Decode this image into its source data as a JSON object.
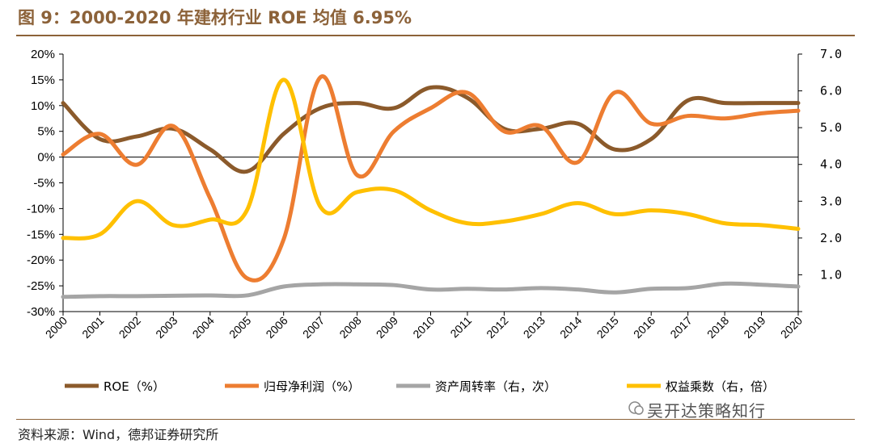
{
  "title": "图 9：2000-2020 年建材行业 ROE 均值 6.95%",
  "source": "资料来源：Wind，德邦证券研究所",
  "watermark": "吴开达策略知行",
  "chart_data": {
    "type": "line",
    "x": [
      "2000",
      "2001",
      "2002",
      "2003",
      "2004",
      "2005",
      "2006",
      "2007",
      "2008",
      "2009",
      "2010",
      "2011",
      "2012",
      "2013",
      "2014",
      "2015",
      "2016",
      "2017",
      "2018",
      "2019",
      "2020"
    ],
    "y_left": {
      "min": -30,
      "max": 20,
      "step": 5,
      "format": "percent",
      "ticks": [
        "20%",
        "15%",
        "10%",
        "5%",
        "0%",
        "-5%",
        "-10%",
        "-15%",
        "-20%",
        "-25%",
        "-30%"
      ]
    },
    "y_right": {
      "min": 0,
      "max": 7,
      "step": 1,
      "ticks": [
        "7.0",
        "6.0",
        "5.0",
        "4.0",
        "3.0",
        "2.0",
        "1.0"
      ]
    },
    "series": [
      {
        "name": "ROE（%）",
        "axis": "left",
        "color": "#8b5a2b",
        "values": [
          10.5,
          3.5,
          4.0,
          5.5,
          1.5,
          -2.8,
          4.5,
          9.5,
          10.5,
          9.5,
          13.5,
          11.5,
          5.5,
          5.5,
          6.5,
          1.5,
          3.5,
          11.0,
          10.5,
          10.5,
          10.5
        ]
      },
      {
        "name": "归母净利润（%）",
        "axis": "left",
        "color": "#ed7d31",
        "values": [
          0.5,
          4.5,
          -1.5,
          6.0,
          -8.0,
          -23.5,
          -16.0,
          15.5,
          -3.5,
          5.0,
          9.5,
          12.5,
          5.0,
          6.0,
          -1.0,
          12.5,
          6.5,
          8.0,
          7.5,
          8.5,
          9.0
        ]
      },
      {
        "name": "资产周转率（右，次）",
        "axis": "right",
        "color": "#a5a5a5",
        "values": [
          0.4,
          0.42,
          0.42,
          0.43,
          0.44,
          0.44,
          0.68,
          0.74,
          0.74,
          0.72,
          0.6,
          0.62,
          0.6,
          0.64,
          0.6,
          0.52,
          0.62,
          0.64,
          0.76,
          0.73,
          0.68
        ]
      },
      {
        "name": "权益乘数（右，倍）",
        "axis": "right",
        "color": "#ffc000",
        "values": [
          2.0,
          2.1,
          3.0,
          2.35,
          2.5,
          2.75,
          6.3,
          2.85,
          3.25,
          3.3,
          2.75,
          2.4,
          2.45,
          2.65,
          2.95,
          2.65,
          2.75,
          2.65,
          2.4,
          2.35,
          2.25
        ]
      }
    ]
  }
}
